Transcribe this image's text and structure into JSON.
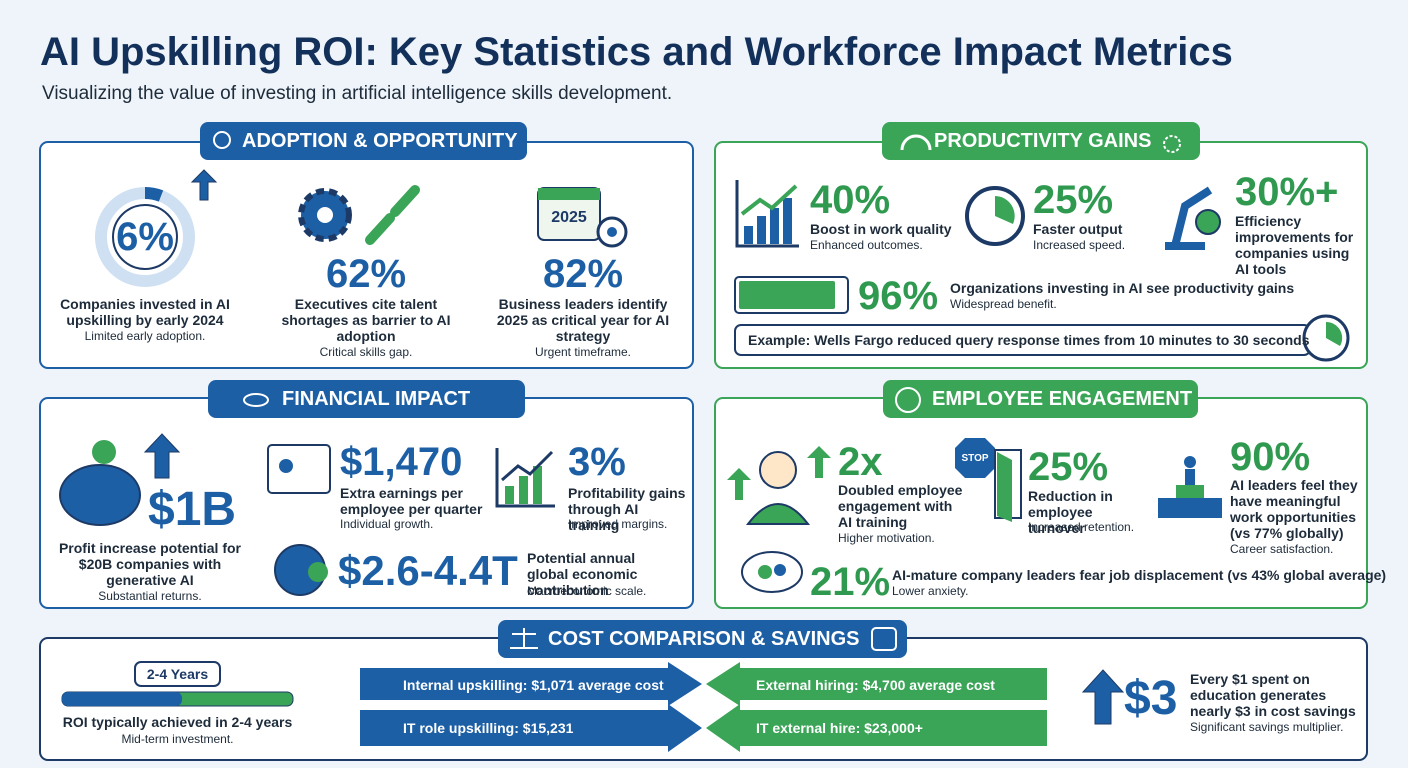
{
  "header": {
    "title": "AI Upskilling ROI: Key Statistics and Workforce Impact Metrics",
    "subtitle": "Visualizing the value of investing in artificial intelligence skills development."
  },
  "adoption": {
    "title": "ADOPTION & OPPORTUNITY",
    "calendar_label": "2025",
    "items": [
      {
        "stat": "6%",
        "label": "Companies invested in AI upskilling by early 2024",
        "note": "Limited early adoption."
      },
      {
        "stat": "62%",
        "label": "Executives cite talent shortages as barrier to AI adoption",
        "note": "Critical skills gap."
      },
      {
        "stat": "82%",
        "label": "Business leaders identify 2025 as critical year for AI strategy",
        "note": "Urgent timeframe."
      }
    ]
  },
  "productivity": {
    "title": "PRODUCTIVITY GAINS",
    "items": [
      {
        "stat": "40%",
        "label": "Boost in work quality",
        "note": "Enhanced outcomes."
      },
      {
        "stat": "25%",
        "label": "Faster output",
        "note": "Increased speed."
      },
      {
        "stat": "30%+",
        "label": "Efficiency improvements for companies using AI tools"
      }
    ],
    "wide": {
      "stat": "96%",
      "label": "Organizations investing in AI see productivity gains",
      "note": "Widespread benefit."
    },
    "example": "Example: Wells Fargo reduced query response times from 10 minutes to 30 seconds"
  },
  "financial": {
    "title": "FINANCIAL IMPACT",
    "items": [
      {
        "stat": "$1B",
        "label": "Profit increase potential for $20B companies with generative AI",
        "note": "Substantial returns."
      },
      {
        "stat": "$1,470",
        "label": "Extra earnings per employee per quarter",
        "note": "Individual growth."
      },
      {
        "stat": "3%",
        "label": "Profitability gains through AI training",
        "note": "Improved margins."
      },
      {
        "stat": "$2.6-4.4T",
        "label": "Potential annual global economic contribution",
        "note": "Macroeconomic scale."
      }
    ]
  },
  "engagement": {
    "title": "EMPLOYEE ENGAGEMENT",
    "stop_sign": "STOP",
    "items": [
      {
        "stat": "2x",
        "label": "Doubled employee engagement with AI training",
        "note": "Higher motivation."
      },
      {
        "stat": "25%",
        "label": "Reduction in employee turnover",
        "note": "Increased retention."
      },
      {
        "stat": "90%",
        "label": "AI leaders feel they have meaningful work opportunities (vs 77% globally)",
        "note": "Career satisfaction."
      }
    ],
    "wide": {
      "stat": "21%",
      "label": "AI-mature company leaders fear job displacement (vs 43% global average)",
      "note": "Lower anxiety."
    }
  },
  "cost": {
    "title": "COST COMPARISON & SAVINGS",
    "roi": {
      "badge": "2-4 Years",
      "label": "ROI typically achieved in 2-4 years",
      "note": "Mid-term investment."
    },
    "internal": [
      "Internal upskilling: $1,071 average cost",
      "IT role upskilling: $15,231"
    ],
    "external": [
      "External hiring: $4,700 average cost",
      "IT external hire: $23,000+"
    ],
    "savings": {
      "stat": "$3",
      "label": "Every $1 spent on education generates nearly $3 in cost savings",
      "note": "Significant savings multiplier."
    }
  }
}
